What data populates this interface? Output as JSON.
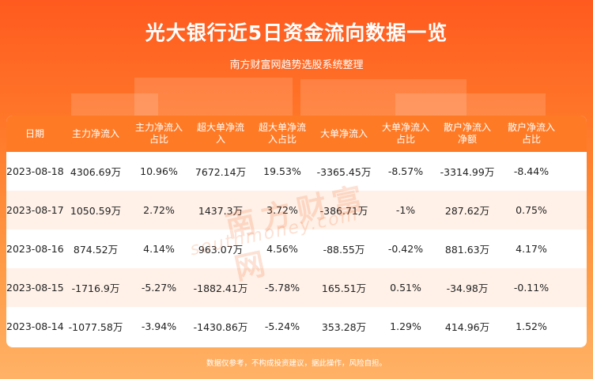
{
  "title": "光大银行近5日资金流向数据一览",
  "subtitle": "南方财富网趋势选股系统整理",
  "columns": [
    "日期",
    "主力净流入",
    "主力净流入\n占比",
    "超大单净流\n入",
    "超大单净流\n入占比",
    "大单净流入",
    "大单净流入\n占比",
    "散户净流入\n净额",
    "散户净流入\n占比"
  ],
  "rows": [
    [
      "2023-08-18",
      "4306.69万",
      "10.96%",
      "7672.14万",
      "19.53%",
      "-3365.45万",
      "-8.57%",
      "-3314.99万",
      "-8.44%"
    ],
    [
      "2023-08-17",
      "1050.59万",
      "2.72%",
      "1437.3万",
      "3.72%",
      "-386.71万",
      "-1%",
      "287.62万",
      "0.75%"
    ],
    [
      "2023-08-16",
      "874.52万",
      "4.14%",
      "963.07万",
      "4.56%",
      "-88.55万",
      "-0.42%",
      "881.63万",
      "4.17%"
    ],
    [
      "2023-08-15",
      "-1716.9万",
      "-5.27%",
      "-1882.41万",
      "-5.78%",
      "165.51万",
      "0.51%",
      "-34.98万",
      "-0.11%"
    ],
    [
      "2023-08-14",
      "-1077.58万",
      "-3.94%",
      "-1430.86万",
      "-5.24%",
      "353.28万",
      "1.29%",
      "414.96万",
      "1.52%"
    ]
  ],
  "watermark": {
    "cn": "南方财富网",
    "en": "southmoney.com"
  },
  "footer": "数据仅参考，不构成投资建议，据此操作，风险自担。",
  "colors": {
    "header_bg": "#ff7a25",
    "alt_row_bg": "#fff1e8",
    "page_bg_top": "#ff5a1f",
    "page_bg_bottom": "#ffb266"
  }
}
